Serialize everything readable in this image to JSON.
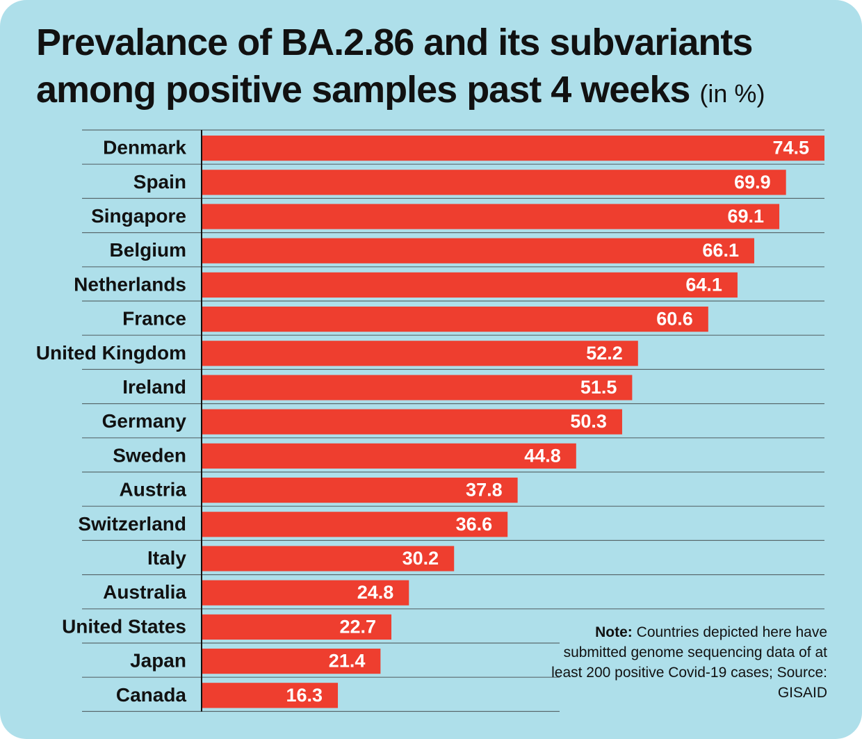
{
  "title": {
    "line1": "Prevalance of BA.2.86 and its subvariants",
    "line2": "among positive samples past 4 weeks",
    "unit": "(in %)"
  },
  "note": {
    "label": "Note:",
    "text": "Countries depicted here have submitted genome sequencing data of at least 200 positive Covid-19 cases; Source: GISAID"
  },
  "colors": {
    "background": "#aedfea",
    "bar": "#ee3e2f",
    "value_label": "#ffffff",
    "gridline": "#5a6a6e",
    "axis": "#111111"
  },
  "chart_data": {
    "type": "bar",
    "orientation": "horizontal",
    "categories": [
      "Denmark",
      "Spain",
      "Singapore",
      "Belgium",
      "Netherlands",
      "France",
      "United Kingdom",
      "Ireland",
      "Germany",
      "Sweden",
      "Austria",
      "Switzerland",
      "Italy",
      "Australia",
      "United States",
      "Japan",
      "Canada"
    ],
    "values": [
      74.5,
      69.9,
      69.1,
      66.1,
      64.1,
      60.6,
      52.2,
      51.5,
      50.3,
      44.8,
      37.8,
      36.6,
      30.2,
      24.8,
      22.7,
      21.4,
      16.3
    ],
    "title": "Prevalance of BA.2.86 and its subvariants among positive samples past 4 weeks",
    "xlabel": "",
    "ylabel": "",
    "xlim": [
      0,
      74.5
    ],
    "data_labels": true,
    "grid": true,
    "legend": "none"
  }
}
